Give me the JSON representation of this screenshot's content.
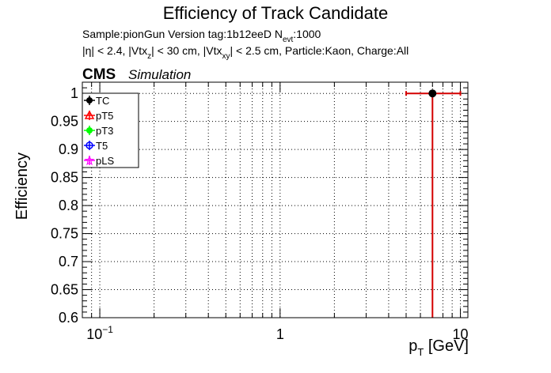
{
  "chart_data": {
    "type": "scatter",
    "title": "Efficiency of Track Candidate",
    "subtitle_line1": {
      "pre": "Sample:pionGun   Version tag:1b12eeD  N",
      "sub": "evt",
      "post": ":1000"
    },
    "subtitle_line2": {
      "p1": "|η| < 2.4, |Vtx",
      "s1": "z",
      "p2": "| < 30 cm, |Vtx",
      "s2": "xy",
      "p3": "| < 2.5 cm, Particle:Kaon, Charge:All"
    },
    "cms_label": "CMS",
    "simulation_label": "Simulation",
    "ylabel": "Efficiency",
    "xlabel": {
      "main": "p",
      "sub": "T",
      "unit": " [GeV]"
    },
    "x_scale": "log",
    "xlim": [
      0.08,
      11
    ],
    "ylim": [
      0.6,
      1.02
    ],
    "grid": true,
    "x_ticks": [
      {
        "value": 0.1,
        "base": "10",
        "exp": "−1"
      },
      {
        "value": 1,
        "base": "1",
        "exp": ""
      },
      {
        "value": 10,
        "base": "10",
        "exp": ""
      }
    ],
    "y_ticks": [
      "0.6",
      "0.65",
      "0.7",
      "0.75",
      "0.8",
      "0.85",
      "0.9",
      "0.95",
      "1"
    ],
    "legend_position": "top-left",
    "series": [
      {
        "name": "TC",
        "color": "#000000",
        "marker": "circle-filled",
        "points": [
          {
            "x": 7.0,
            "y": 1.0,
            "xerr_low": 5.0,
            "xerr_high": 10.0,
            "y_low": 0.6
          }
        ]
      },
      {
        "name": "pT5",
        "color": "#ff0000",
        "marker": "triangle-open",
        "points": []
      },
      {
        "name": "pT3",
        "color": "#00ff00",
        "marker": "circle-filled",
        "points": []
      },
      {
        "name": "T5",
        "color": "#0000ff",
        "marker": "circle-open",
        "points": []
      },
      {
        "name": "pLS",
        "color": "#ff00ff",
        "marker": "star",
        "points": []
      }
    ]
  }
}
